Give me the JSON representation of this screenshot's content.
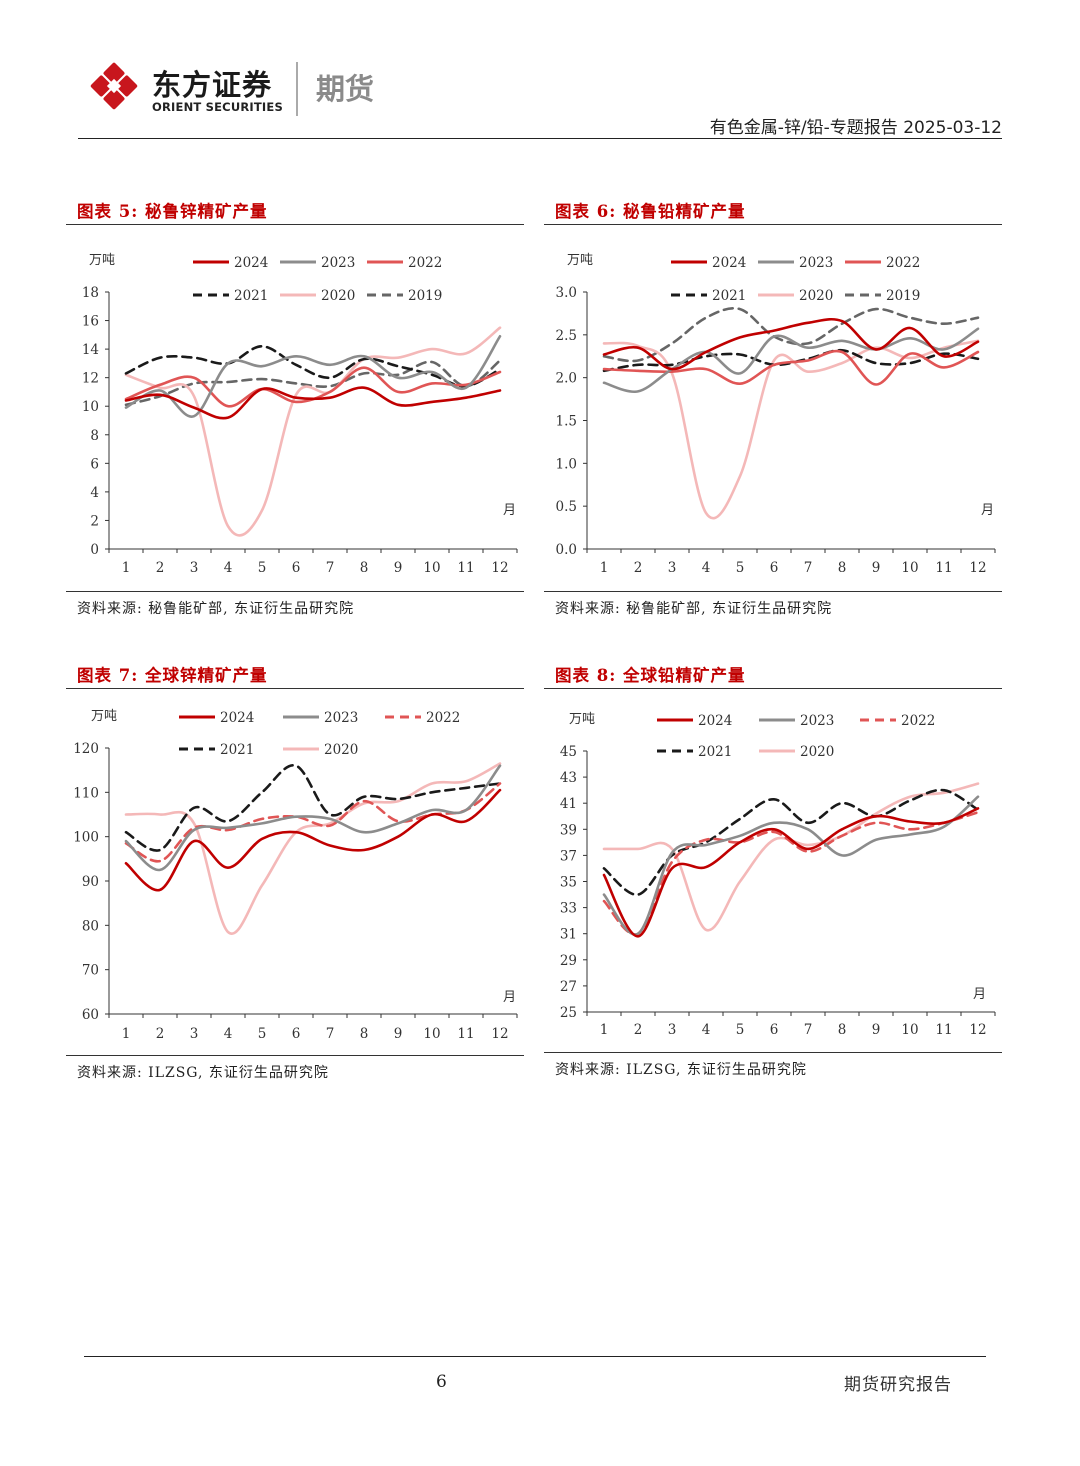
{
  "header": {
    "logo_cn": "东方证券",
    "logo_en": "ORIENT SECURITIES",
    "logo_sub": "期货",
    "report_id": "有色金属-锌/铅-专题报告 2025-03-12"
  },
  "footer": {
    "page_number": "6",
    "label": "期货研究报告"
  },
  "colors": {
    "2024": "#c00000",
    "2023": "#8c8c8c",
    "2022": "#e05555",
    "2021": "#1a1a1a",
    "2020": "#f4b8b8",
    "2019": "#666666"
  },
  "chart_data": [
    {
      "id": "chart5",
      "type": "line",
      "title": "图表 5: 秘鲁锌精矿产量",
      "source": "资料来源: 秘鲁能矿部, 东证衍生品研究院",
      "unit": "万吨",
      "xunit": "月",
      "x": [
        1,
        2,
        3,
        4,
        5,
        6,
        7,
        8,
        9,
        10,
        11,
        12
      ],
      "ylim": [
        0,
        18
      ],
      "yticks": [
        0,
        2,
        4,
        6,
        8,
        10,
        12,
        14,
        16,
        18
      ],
      "ytick_labels": [
        "0",
        "2",
        "4",
        "6",
        "8",
        "10",
        "12",
        "14",
        "16",
        "18"
      ],
      "series": [
        {
          "name": "2024",
          "style": "solid",
          "values": [
            10.4,
            10.8,
            9.9,
            9.2,
            11.2,
            10.6,
            10.6,
            11.3,
            10.1,
            10.3,
            10.6,
            11.1
          ]
        },
        {
          "name": "2023",
          "style": "solid",
          "values": [
            9.9,
            11.1,
            9.3,
            13.0,
            12.8,
            13.5,
            12.9,
            13.5,
            12.0,
            12.4,
            11.3,
            14.9
          ]
        },
        {
          "name": "2022",
          "style": "solid",
          "values": [
            10.5,
            11.5,
            12.0,
            10.0,
            11.2,
            10.3,
            11.0,
            12.7,
            11.0,
            11.6,
            11.5,
            12.4
          ]
        },
        {
          "name": "2021",
          "style": "dash",
          "values": [
            12.3,
            13.4,
            13.4,
            13.0,
            14.2,
            12.9,
            12.0,
            13.3,
            12.8,
            12.2,
            11.4,
            12.6
          ]
        },
        {
          "name": "2020",
          "style": "solid",
          "values": [
            12.2,
            11.3,
            10.7,
            1.6,
            2.7,
            10.8,
            11.0,
            13.3,
            13.4,
            14.0,
            13.7,
            15.5
          ]
        },
        {
          "name": "2019",
          "style": "dash",
          "values": [
            10.1,
            10.7,
            11.6,
            11.7,
            11.9,
            11.6,
            11.4,
            12.3,
            12.2,
            13.1,
            11.4,
            13.2
          ]
        }
      ]
    },
    {
      "id": "chart6",
      "type": "line",
      "title": "图表 6: 秘鲁铅精矿产量",
      "source": "资料来源: 秘鲁能矿部, 东证衍生品研究院",
      "unit": "万吨",
      "xunit": "月",
      "x": [
        1,
        2,
        3,
        4,
        5,
        6,
        7,
        8,
        9,
        10,
        11,
        12
      ],
      "ylim": [
        0,
        3
      ],
      "yticks": [
        0,
        0.5,
        1,
        1.5,
        2,
        2.5,
        3
      ],
      "ytick_labels": [
        "0.0",
        "0.5",
        "1.0",
        "1.5",
        "2.0",
        "2.5",
        "3.0"
      ],
      "series": [
        {
          "name": "2024",
          "style": "solid",
          "values": [
            2.27,
            2.35,
            2.1,
            2.3,
            2.47,
            2.55,
            2.64,
            2.66,
            2.33,
            2.58,
            2.25,
            2.42
          ]
        },
        {
          "name": "2023",
          "style": "solid",
          "values": [
            1.94,
            1.84,
            2.1,
            2.3,
            2.05,
            2.48,
            2.35,
            2.43,
            2.33,
            2.46,
            2.33,
            2.57
          ]
        },
        {
          "name": "2022",
          "style": "solid",
          "values": [
            2.1,
            2.08,
            2.07,
            2.1,
            1.93,
            2.15,
            2.2,
            2.3,
            1.92,
            2.28,
            2.12,
            2.3
          ]
        },
        {
          "name": "2021",
          "style": "dash",
          "values": [
            2.08,
            2.15,
            2.15,
            2.25,
            2.27,
            2.15,
            2.22,
            2.32,
            2.17,
            2.17,
            2.28,
            2.22
          ]
        },
        {
          "name": "2020",
          "style": "solid",
          "values": [
            2.4,
            2.37,
            2.05,
            0.42,
            0.85,
            2.2,
            2.07,
            2.17,
            2.35,
            2.23,
            2.35,
            2.43
          ]
        },
        {
          "name": "2019",
          "style": "dash",
          "values": [
            2.25,
            2.2,
            2.4,
            2.7,
            2.8,
            2.48,
            2.4,
            2.63,
            2.8,
            2.7,
            2.63,
            2.7
          ]
        }
      ]
    },
    {
      "id": "chart7",
      "type": "line",
      "title": "图表 7: 全球锌精矿产量",
      "source": "资料来源: ILZSG, 东证衍生品研究院",
      "unit": "万吨",
      "xunit": "月",
      "x": [
        1,
        2,
        3,
        4,
        5,
        6,
        7,
        8,
        9,
        10,
        11,
        12
      ],
      "ylim": [
        60,
        120
      ],
      "yticks": [
        60,
        70,
        80,
        90,
        100,
        110,
        120
      ],
      "ytick_labels": [
        "60",
        "70",
        "80",
        "90",
        "100",
        "110",
        "120"
      ],
      "series": [
        {
          "name": "2024",
          "style": "solid",
          "values": [
            94,
            88,
            99,
            93,
            99.5,
            101,
            98,
            97,
            100,
            105,
            103.5,
            110.5
          ]
        },
        {
          "name": "2023",
          "style": "solid",
          "values": [
            99,
            92.5,
            101.5,
            102,
            103,
            104.5,
            104,
            101,
            103,
            106,
            106,
            116
          ]
        },
        {
          "name": "2022",
          "style": "dash",
          "values": [
            98.5,
            94.5,
            102,
            101.5,
            104,
            104.5,
            102.5,
            108,
            103.5,
            105,
            106,
            112
          ]
        },
        {
          "name": "2021",
          "style": "dash",
          "values": [
            101,
            97,
            106.5,
            103.5,
            110,
            116,
            105,
            109,
            108.5,
            110,
            111,
            112
          ]
        },
        {
          "name": "2020",
          "style": "solid",
          "values": [
            105,
            105,
            103,
            78.5,
            89,
            101,
            103,
            107.5,
            108,
            112,
            112.5,
            116.5
          ]
        }
      ]
    },
    {
      "id": "chart8",
      "type": "line",
      "title": "图表 8: 全球铅精矿产量",
      "source": "资料来源: ILZSG, 东证衍生品研究院",
      "unit": "万吨",
      "xunit": "月",
      "x": [
        1,
        2,
        3,
        4,
        5,
        6,
        7,
        8,
        9,
        10,
        11,
        12
      ],
      "ylim": [
        25,
        45
      ],
      "yticks": [
        25,
        27,
        29,
        31,
        33,
        35,
        37,
        39,
        41,
        43,
        45
      ],
      "ytick_labels": [
        "25",
        "27",
        "29",
        "31",
        "33",
        "35",
        "37",
        "39",
        "41",
        "43",
        "45"
      ],
      "series": [
        {
          "name": "2024",
          "style": "solid",
          "values": [
            35.5,
            30.8,
            36.0,
            36.1,
            38.0,
            39.0,
            37.5,
            39.0,
            40.0,
            39.6,
            39.5,
            40.6
          ]
        },
        {
          "name": "2023",
          "style": "solid",
          "values": [
            34.0,
            31.0,
            37.2,
            37.8,
            38.5,
            39.5,
            39.0,
            37.0,
            38.2,
            38.6,
            39.2,
            41.5
          ]
        },
        {
          "name": "2022",
          "style": "dash",
          "values": [
            33.5,
            31.0,
            36.5,
            38.2,
            38.0,
            38.8,
            37.3,
            38.5,
            39.5,
            39.0,
            39.5,
            40.3
          ]
        },
        {
          "name": "2021",
          "style": "dash",
          "values": [
            36.0,
            34.0,
            37.0,
            38.0,
            39.8,
            41.3,
            39.5,
            41.0,
            40.0,
            41.2,
            42.0,
            40.5
          ]
        },
        {
          "name": "2020",
          "style": "solid",
          "values": [
            37.5,
            37.5,
            37.5,
            31.3,
            35.0,
            38.2,
            37.8,
            38.5,
            40.2,
            41.5,
            41.8,
            42.5
          ]
        }
      ]
    }
  ]
}
